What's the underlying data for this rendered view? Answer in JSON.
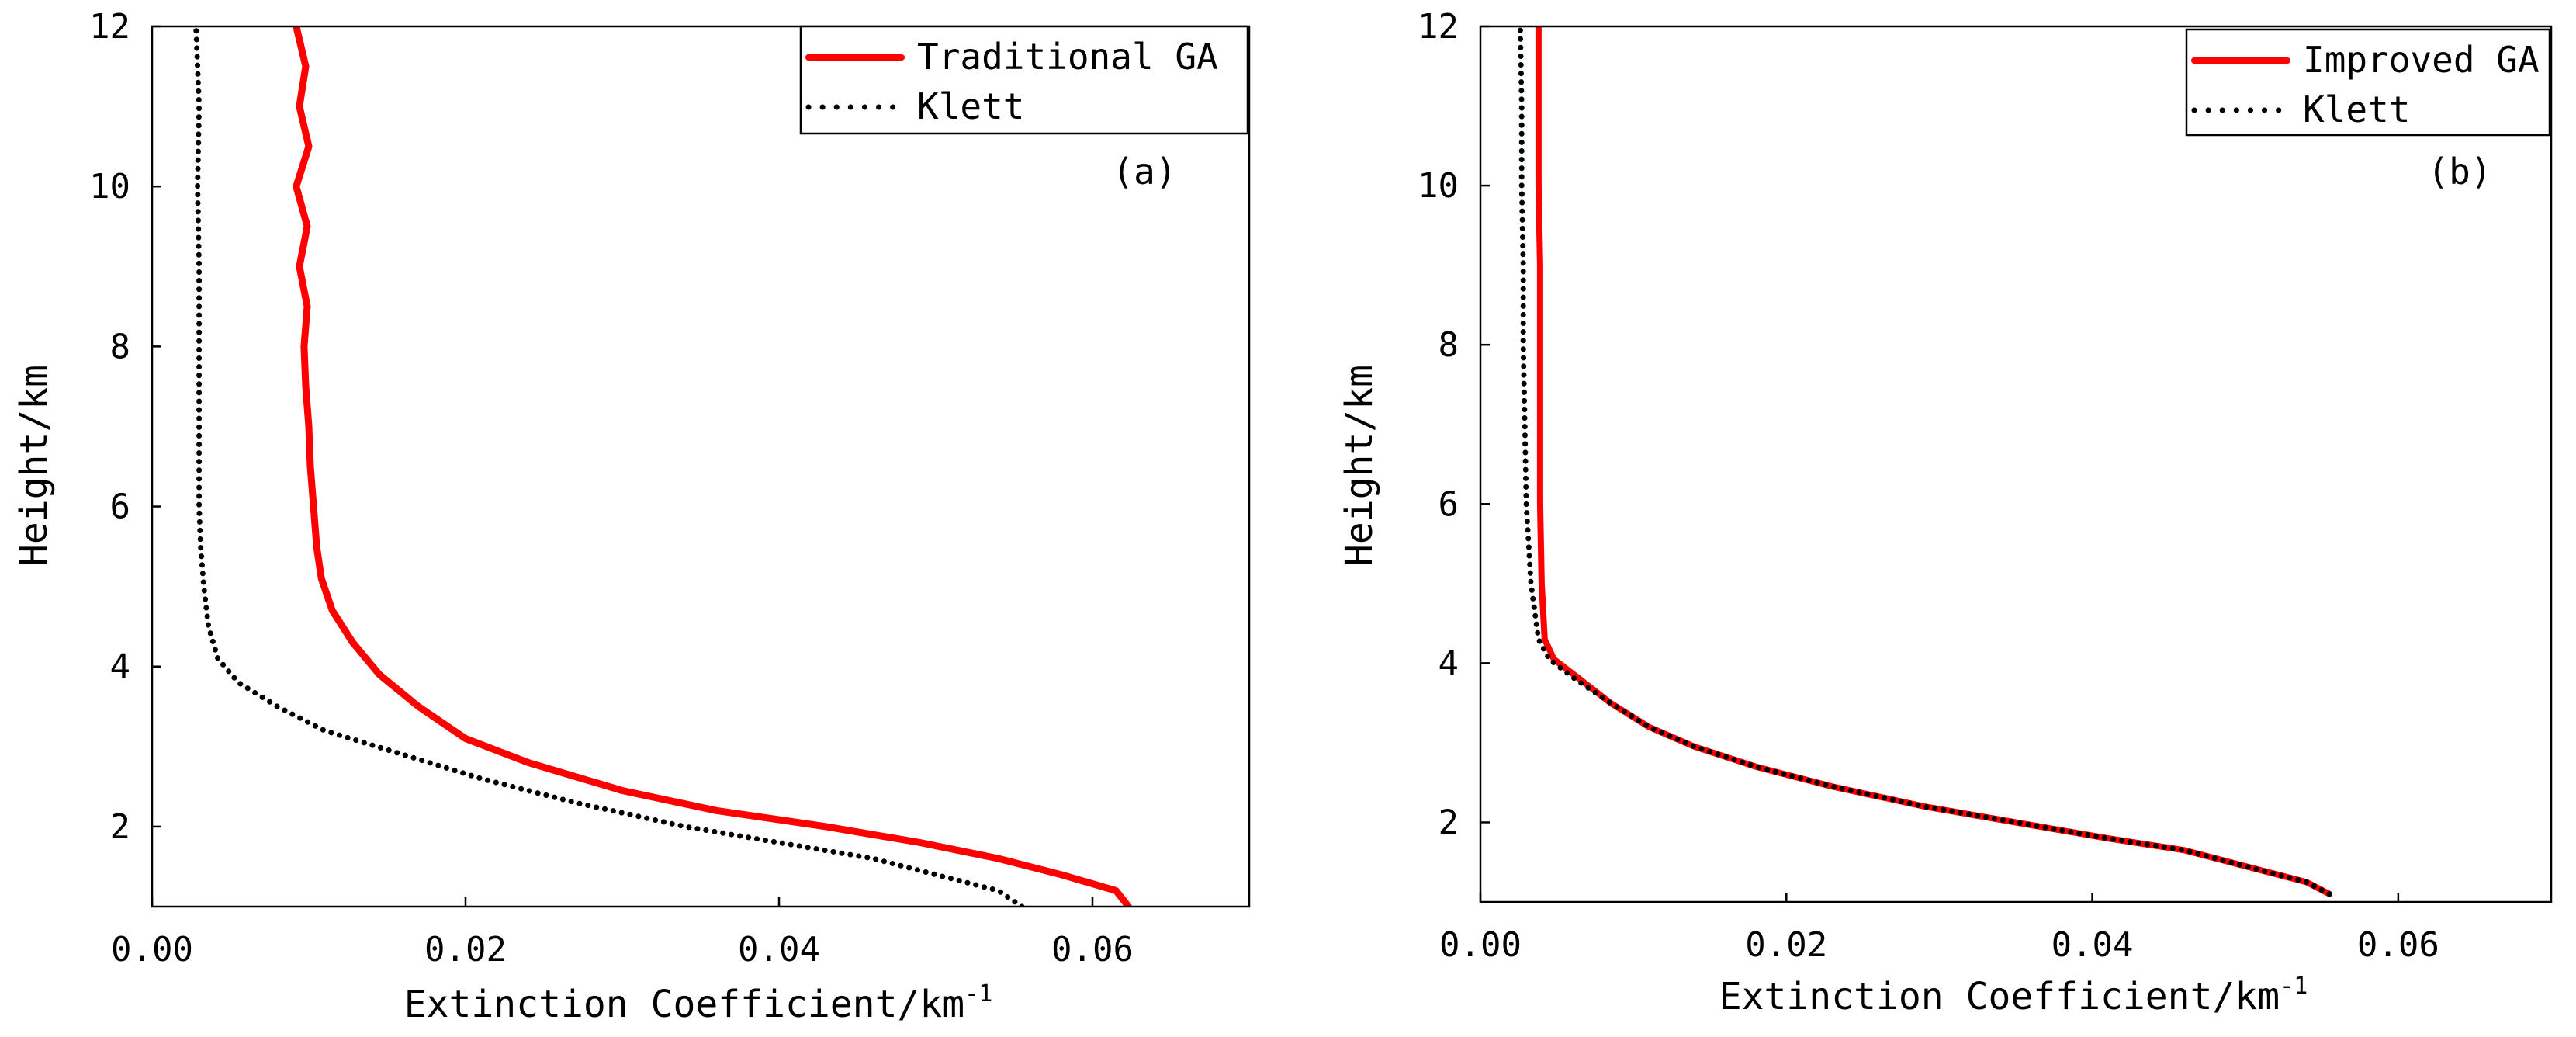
{
  "chart_data": [
    {
      "type": "line",
      "panel_label": "(a)",
      "xlabel": "Extinction Coefficient/km",
      "xlabel_sup": "-1",
      "ylabel": "Height/km",
      "xlim": [
        0,
        0.07
      ],
      "ylim": [
        1,
        12
      ],
      "xticks": [
        0.0,
        0.02,
        0.04,
        0.06
      ],
      "xtick_labels": [
        "0.00",
        "0.02",
        "0.04",
        "0.06"
      ],
      "yticks": [
        2,
        4,
        6,
        8,
        10,
        12
      ],
      "ytick_labels": [
        "2",
        "4",
        "6",
        "8",
        "10",
        "12"
      ],
      "legend_position": "top-right",
      "series": [
        {
          "name": "Traditional GA",
          "style": "solid",
          "color": "#ff0000",
          "points": [
            [
              0.0623,
              1.0
            ],
            [
              0.0615,
              1.2
            ],
            [
              0.058,
              1.4
            ],
            [
              0.054,
              1.6
            ],
            [
              0.049,
              1.8
            ],
            [
              0.043,
              2.0
            ],
            [
              0.036,
              2.2
            ],
            [
              0.03,
              2.45
            ],
            [
              0.024,
              2.8
            ],
            [
              0.02,
              3.1
            ],
            [
              0.017,
              3.5
            ],
            [
              0.0145,
              3.9
            ],
            [
              0.0128,
              4.3
            ],
            [
              0.0115,
              4.7
            ],
            [
              0.0108,
              5.1
            ],
            [
              0.0105,
              5.5
            ],
            [
              0.0103,
              6.0
            ],
            [
              0.0101,
              6.5
            ],
            [
              0.01,
              7.0
            ],
            [
              0.0098,
              7.5
            ],
            [
              0.0097,
              8.0
            ],
            [
              0.0099,
              8.5
            ],
            [
              0.0094,
              9.0
            ],
            [
              0.0099,
              9.5
            ],
            [
              0.0092,
              10.0
            ],
            [
              0.01,
              10.5
            ],
            [
              0.0094,
              11.0
            ],
            [
              0.0098,
              11.5
            ],
            [
              0.0092,
              12.0
            ]
          ]
        },
        {
          "name": "Klett",
          "style": "dotted",
          "color": "#000000",
          "points": [
            [
              0.0555,
              1.0
            ],
            [
              0.054,
              1.2
            ],
            [
              0.05,
              1.4
            ],
            [
              0.046,
              1.6
            ],
            [
              0.04,
              1.8
            ],
            [
              0.034,
              2.0
            ],
            [
              0.027,
              2.3
            ],
            [
              0.021,
              2.6
            ],
            [
              0.016,
              2.9
            ],
            [
              0.011,
              3.2
            ],
            [
              0.008,
              3.5
            ],
            [
              0.0055,
              3.8
            ],
            [
              0.0042,
              4.1
            ],
            [
              0.0036,
              4.5
            ],
            [
              0.0033,
              5.0
            ],
            [
              0.0031,
              5.5
            ],
            [
              0.003,
              6.0
            ],
            [
              0.003,
              7.0
            ],
            [
              0.003,
              8.0
            ],
            [
              0.003,
              9.0
            ],
            [
              0.0029,
              10.0
            ],
            [
              0.003,
              11.0
            ],
            [
              0.0028,
              12.0
            ]
          ]
        }
      ]
    },
    {
      "type": "line",
      "panel_label": "(b)",
      "xlabel": "Extinction Coefficient/km",
      "xlabel_sup": "-1",
      "ylabel": "Height/km",
      "xlim": [
        0,
        0.07
      ],
      "ylim": [
        1,
        12
      ],
      "xticks": [
        0.0,
        0.02,
        0.04,
        0.06
      ],
      "xtick_labels": [
        "0.00",
        "0.02",
        "0.04",
        "0.06"
      ],
      "yticks": [
        2,
        4,
        6,
        8,
        10,
        12
      ],
      "ytick_labels": [
        "2",
        "4",
        "6",
        "8",
        "10",
        "12"
      ],
      "legend_position": "top-right",
      "series": [
        {
          "name": "Improved GA",
          "style": "solid",
          "color": "#ff0000",
          "points": [
            [
              0.0555,
              1.1
            ],
            [
              0.054,
              1.25
            ],
            [
              0.05,
              1.45
            ],
            [
              0.046,
              1.65
            ],
            [
              0.041,
              1.8
            ],
            [
              0.035,
              2.0
            ],
            [
              0.029,
              2.2
            ],
            [
              0.023,
              2.45
            ],
            [
              0.018,
              2.7
            ],
            [
              0.014,
              2.95
            ],
            [
              0.011,
              3.2
            ],
            [
              0.0085,
              3.5
            ],
            [
              0.0065,
              3.8
            ],
            [
              0.0048,
              4.05
            ],
            [
              0.0042,
              4.3
            ],
            [
              0.004,
              5.0
            ],
            [
              0.0039,
              6.0
            ],
            [
              0.0039,
              7.0
            ],
            [
              0.0039,
              8.0
            ],
            [
              0.0039,
              9.0
            ],
            [
              0.0038,
              10.0
            ],
            [
              0.0038,
              11.0
            ],
            [
              0.0038,
              12.0
            ]
          ]
        },
        {
          "name": "Klett",
          "style": "dotted",
          "color": "#000000",
          "points": [
            [
              0.0555,
              1.1
            ],
            [
              0.054,
              1.25
            ],
            [
              0.05,
              1.45
            ],
            [
              0.046,
              1.65
            ],
            [
              0.041,
              1.8
            ],
            [
              0.035,
              2.0
            ],
            [
              0.029,
              2.2
            ],
            [
              0.023,
              2.45
            ],
            [
              0.018,
              2.7
            ],
            [
              0.014,
              2.95
            ],
            [
              0.011,
              3.2
            ],
            [
              0.0085,
              3.5
            ],
            [
              0.0062,
              3.8
            ],
            [
              0.0045,
              4.05
            ],
            [
              0.0038,
              4.3
            ],
            [
              0.0033,
              5.0
            ],
            [
              0.003,
              6.0
            ],
            [
              0.0029,
              7.0
            ],
            [
              0.0028,
              8.0
            ],
            [
              0.0028,
              9.0
            ],
            [
              0.0027,
              10.0
            ],
            [
              0.0027,
              11.0
            ],
            [
              0.0026,
              12.0
            ]
          ]
        }
      ]
    }
  ]
}
